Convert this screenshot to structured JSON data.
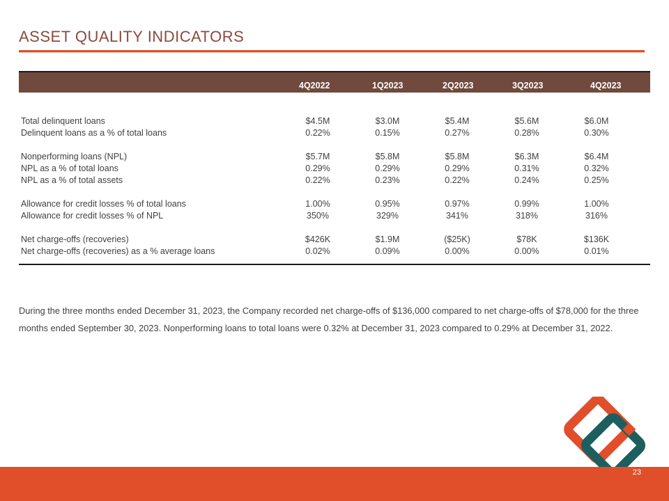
{
  "title": "ASSET QUALITY INDICATORS",
  "table": {
    "headers": [
      "4Q2022",
      "1Q2023",
      "2Q2023",
      "3Q2023",
      "4Q2023"
    ],
    "rows": [
      {
        "label": "Total delinquent loans",
        "values": [
          "$4.5M",
          "$3.0M",
          "$5.4M",
          "$5.6M",
          "$6.0M"
        ]
      },
      {
        "label": "Delinquent loans as a % of total loans",
        "values": [
          "0.22%",
          "0.15%",
          "0.27%",
          "0.28%",
          "0.30%"
        ]
      },
      {
        "label": "Nonperforming loans (NPL)",
        "values": [
          "$5.7M",
          "$5.8M",
          "$5.8M",
          "$6.3M",
          "$6.4M"
        ]
      },
      {
        "label": "NPL as a % of total loans",
        "values": [
          "0.29%",
          "0.29%",
          "0.29%",
          "0.31%",
          "0.32%"
        ]
      },
      {
        "label": "NPL as a % of total assets",
        "values": [
          "0.22%",
          "0.23%",
          "0.22%",
          "0.24%",
          "0.25%"
        ]
      },
      {
        "label": "Allowance for credit losses % of total loans",
        "values": [
          "1.00%",
          "0.95%",
          "0.97%",
          "0.99%",
          "1.00%"
        ]
      },
      {
        "label": "Allowance for credit losses % of NPL",
        "values": [
          "350%",
          "329%",
          "341%",
          "318%",
          "316%"
        ]
      },
      {
        "label": "Net charge-offs (recoveries)",
        "values": [
          "$426K",
          "$1.9M",
          "($25K)",
          "$78K",
          "$136K"
        ]
      },
      {
        "label": "Net charge-offs (recoveries) as a % average loans",
        "values": [
          "0.02%",
          "0.09%",
          "0.00%",
          "0.00%",
          "0.01%"
        ]
      }
    ]
  },
  "paragraph": "During the three months ended December 31, 2023, the Company recorded net charge-offs of $136,000 compared to net charge-offs of $78,000 for the three months ended September 30, 2023.  Nonperforming loans to total loans were 0.32% at December 31, 2023 compared to 0.29% at December 31, 2022.",
  "page_number": "23",
  "colors": {
    "accent": "#E04E2A",
    "header_fill": "#6F4A3D",
    "title_color": "#8B4A3C",
    "logo_orange": "#E04E2A",
    "logo_teal": "#1F5E5E"
  },
  "icons": {
    "logo": "interlocked-diamonds-logo"
  }
}
